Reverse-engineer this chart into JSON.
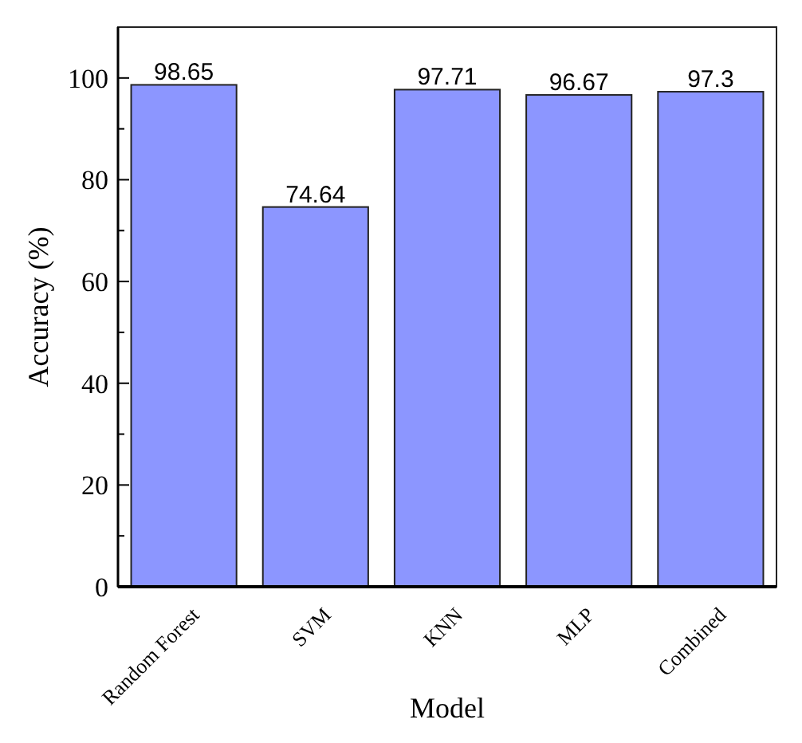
{
  "chart_data": {
    "type": "bar",
    "xlabel": "Model",
    "ylabel": "Accuracy (%)",
    "categories": [
      "Random Forest",
      "SVM",
      "KNN",
      "MLP",
      "Combined"
    ],
    "values": [
      98.65,
      74.64,
      97.71,
      96.67,
      97.3
    ],
    "color": "#8c96ff",
    "data_labels": true,
    "ylim": [
      0,
      110
    ],
    "yticks": [
      0,
      {
        "value": 10,
        "label": null
      },
      20,
      {
        "value": 30,
        "label": null
      },
      40,
      {
        "value": 50,
        "label": null
      },
      60,
      {
        "value": 70,
        "label": null
      },
      80,
      {
        "value": 90,
        "label": null
      },
      100
    ]
  }
}
